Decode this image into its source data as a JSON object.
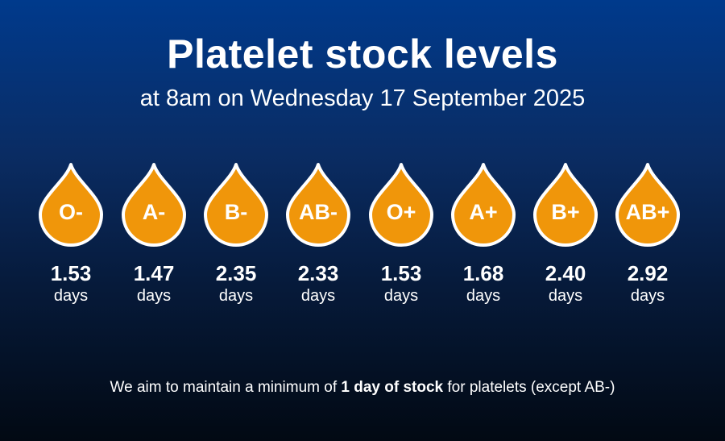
{
  "header": {
    "title": "Platelet stock levels",
    "subtitle": "at 8am on Wednesday 17 September 2025"
  },
  "colors": {
    "drop_fill": "#f0960a",
    "drop_outline": "#ffffff"
  },
  "stock": [
    {
      "group": "O-",
      "value": "1.53",
      "unit": "days",
      "icon": "blood-drop-icon"
    },
    {
      "group": "A-",
      "value": "1.47",
      "unit": "days",
      "icon": "blood-drop-icon"
    },
    {
      "group": "B-",
      "value": "2.35",
      "unit": "days",
      "icon": "blood-drop-icon"
    },
    {
      "group": "AB-",
      "value": "2.33",
      "unit": "days",
      "icon": "blood-drop-icon"
    },
    {
      "group": "O+",
      "value": "1.53",
      "unit": "days",
      "icon": "blood-drop-icon"
    },
    {
      "group": "A+",
      "value": "1.68",
      "unit": "days",
      "icon": "blood-drop-icon"
    },
    {
      "group": "B+",
      "value": "2.40",
      "unit": "days",
      "icon": "blood-drop-icon"
    },
    {
      "group": "AB+",
      "value": "2.92",
      "unit": "days",
      "icon": "blood-drop-icon"
    }
  ],
  "footer": {
    "prefix": "We aim to maintain a minimum of ",
    "emphasis": "1 day of stock",
    "suffix": " for platelets (except AB-)"
  }
}
